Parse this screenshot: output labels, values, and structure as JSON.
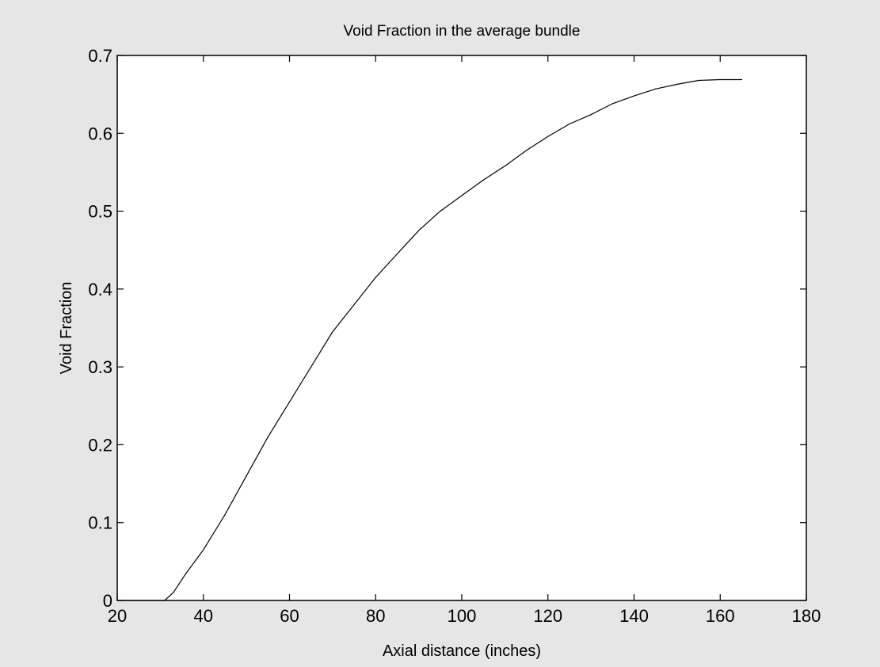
{
  "chart_data": {
    "type": "line",
    "title": "Void Fraction in the average bundle",
    "xlabel": "Axial distance (inches)",
    "ylabel": "Void Fraction",
    "xlim": [
      20,
      180
    ],
    "ylim": [
      0,
      0.7
    ],
    "xticks": [
      "20",
      "40",
      "60",
      "80",
      "100",
      "120",
      "140",
      "160",
      "180"
    ],
    "yticks": [
      "0",
      "0.1",
      "0.2",
      "0.3",
      "0.4",
      "0.5",
      "0.6",
      "0.7"
    ],
    "grid": false,
    "series": [
      {
        "x": [
          20,
          28,
          31,
          33,
          36,
          40,
          45,
          50,
          55,
          60,
          65,
          70,
          75,
          80,
          85,
          90,
          95,
          100,
          105,
          110,
          115,
          120,
          125,
          130,
          135,
          140,
          145,
          150,
          155,
          160,
          165
        ],
        "y": [
          0,
          0,
          0,
          0.01,
          0.035,
          0.065,
          0.11,
          0.16,
          0.21,
          0.255,
          0.3,
          0.345,
          0.38,
          0.415,
          0.445,
          0.475,
          0.5,
          0.52,
          0.54,
          0.558,
          0.578,
          0.596,
          0.612,
          0.624,
          0.638,
          0.648,
          0.657,
          0.663,
          0.668,
          0.669,
          0.669
        ]
      }
    ]
  },
  "colors": {
    "background": "#e6e6e6",
    "plot_area": "#ffffff",
    "line": "#000000"
  }
}
